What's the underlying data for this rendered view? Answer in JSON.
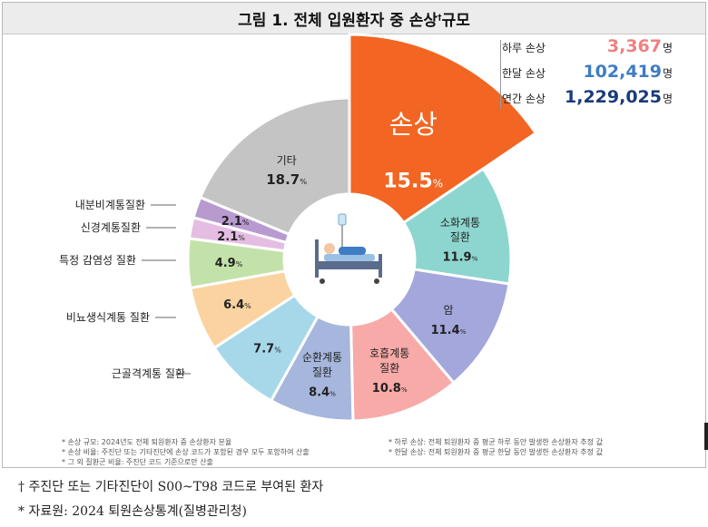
{
  "title": "그림 1. 전체 입원환자 중 손상",
  "title_mark": "†",
  "title_suffix": " 규모",
  "stats": [
    {
      "label": "하루 손상",
      "value": "3,367",
      "unit": "명",
      "color": "#f08080"
    },
    {
      "label": "한달 손상",
      "value": "102,419",
      "unit": "명",
      "color": "#3f7cc4"
    },
    {
      "label": "연간 손상",
      "value": "1,229,025",
      "unit": "명",
      "color": "#1a3b7a"
    }
  ],
  "chart_data": {
    "type": "pie",
    "variant": "donut",
    "unit": "%",
    "slices": [
      {
        "label": "손상",
        "value": 15.5,
        "color": "#f26522",
        "exploded": true
      },
      {
        "label": "소화계통 질환",
        "value": 11.9,
        "color": "#8dd6cf"
      },
      {
        "label": "암",
        "value": 11.4,
        "color": "#a3a7dc"
      },
      {
        "label": "호흡계통 질환",
        "value": 10.8,
        "color": "#f7aaa7"
      },
      {
        "label": "순환계통 질환",
        "value": 8.4,
        "color": "#a6b6dd"
      },
      {
        "label": "근골격계통 질환",
        "value": 7.7,
        "color": "#a7d8ea"
      },
      {
        "label": "비뇨생식계통 질환",
        "value": 6.4,
        "color": "#fbd3a0"
      },
      {
        "label": "특정 감염성 질환",
        "value": 4.9,
        "color": "#c3e2a9"
      },
      {
        "label": "신경계통질환",
        "value": 2.1,
        "color": "#e5bde2"
      },
      {
        "label": "내분비계통질환",
        "value": 2.1,
        "color": "#b89ad0"
      },
      {
        "label": "기타",
        "value": 18.7,
        "color": "#c4c4c4"
      }
    ]
  },
  "notes": {
    "left": [
      "* 손상 규모: 2024년도 전체 퇴원환자 중 손상환자 분율",
      "* 손상 비율: 주진단 또는 기타진단에 손상 코드가 포함된 경우 모두 포함하여 산출",
      "* 그 외 질환군 비율: 주진단 코드 기준으로만 산출"
    ],
    "right": [
      "* 하루 손상: 전체 퇴원환자 중 평균 하루 동안 발생한 손상환자 추정 값",
      "* 한달 손상: 전체 퇴원환자 중 평균 한달 동안 발생한 손상환자 추정 값"
    ]
  },
  "footnotes": [
    {
      "mark": "†",
      "text": "주진단 또는 기타진단이 S00~T98 코드로 부여된 환자"
    },
    {
      "mark": "*",
      "text": "자료원: 2024 퇴원손상통계(질병관리청)"
    }
  ]
}
